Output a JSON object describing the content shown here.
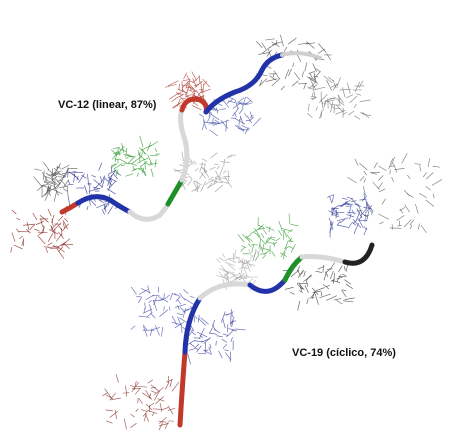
{
  "structures": [
    {
      "label": "VC-12 (linear, 87%)"
    },
    {
      "label": "VC-19 (cíclico, 74%)"
    }
  ]
}
